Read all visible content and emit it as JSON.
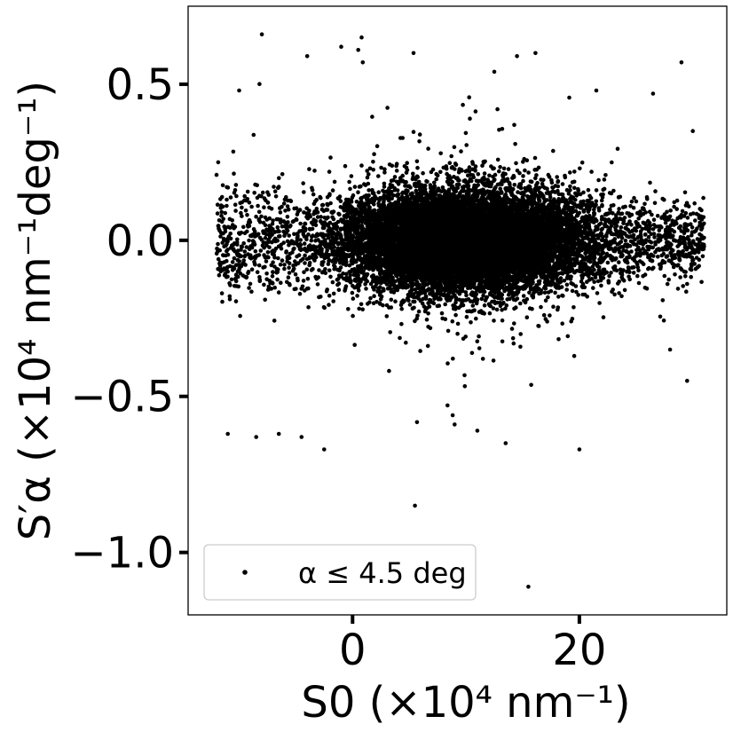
{
  "chart_data": {
    "type": "scatter",
    "title": "",
    "xlabel": "S0 (×10⁴ nm⁻¹)",
    "ylabel": "S′α (×10⁴ nm⁻¹deg⁻¹)",
    "xlim": [
      -14.5,
      33
    ],
    "ylim": [
      -1.2,
      0.75
    ],
    "x_ticks": [
      0,
      20
    ],
    "x_tick_labels": [
      "0",
      "20"
    ],
    "y_ticks": [
      0.5,
      0.0,
      -0.5,
      -1.0
    ],
    "y_tick_labels": [
      "0.5",
      "0.0",
      "−0.5",
      "−1.0"
    ],
    "grid": false,
    "legend": {
      "position": "lower-left",
      "entries": [
        "α ≤ 4.5 deg"
      ]
    },
    "series": [
      {
        "name": "α ≤ 4.5 deg",
        "color": "#000000",
        "marker": "dot",
        "point_count": 14000,
        "distribution": {
          "x_range": [
            -12,
            31
          ],
          "core_x_range": [
            -5,
            25
          ],
          "y_center": 0.0,
          "y_spread": 0.08
        },
        "outliers": [
          {
            "x": -8,
            "y": 0.66
          },
          {
            "x": -1,
            "y": 0.62
          },
          {
            "x": 0.5,
            "y": 0.61
          },
          {
            "x": 0.8,
            "y": 0.65
          },
          {
            "x": 0.9,
            "y": 0.57
          },
          {
            "x": -4,
            "y": 0.59
          },
          {
            "x": 14.5,
            "y": 0.59
          },
          {
            "x": 29,
            "y": 0.57
          },
          {
            "x": 12.5,
            "y": 0.54
          },
          {
            "x": 26.5,
            "y": 0.47
          },
          {
            "x": 21.5,
            "y": 0.48
          },
          {
            "x": -10,
            "y": 0.48
          },
          {
            "x": 5.5,
            "y": -0.85
          },
          {
            "x": 15.5,
            "y": -1.11
          },
          {
            "x": -2.5,
            "y": -0.67
          },
          {
            "x": 20,
            "y": -0.67
          },
          {
            "x": 11,
            "y": -0.61
          },
          {
            "x": 13.5,
            "y": -0.65
          },
          {
            "x": -11,
            "y": -0.62
          },
          {
            "x": -6.5,
            "y": -0.62
          },
          {
            "x": -4.5,
            "y": -0.63
          },
          {
            "x": 29.5,
            "y": -0.45
          },
          {
            "x": 30,
            "y": 0.35
          },
          {
            "x": 31,
            "y": -0.02
          },
          {
            "x": -8.5,
            "y": -0.63
          },
          {
            "x": 9,
            "y": -0.59
          },
          {
            "x": 28,
            "y": -0.35
          }
        ]
      }
    ]
  }
}
